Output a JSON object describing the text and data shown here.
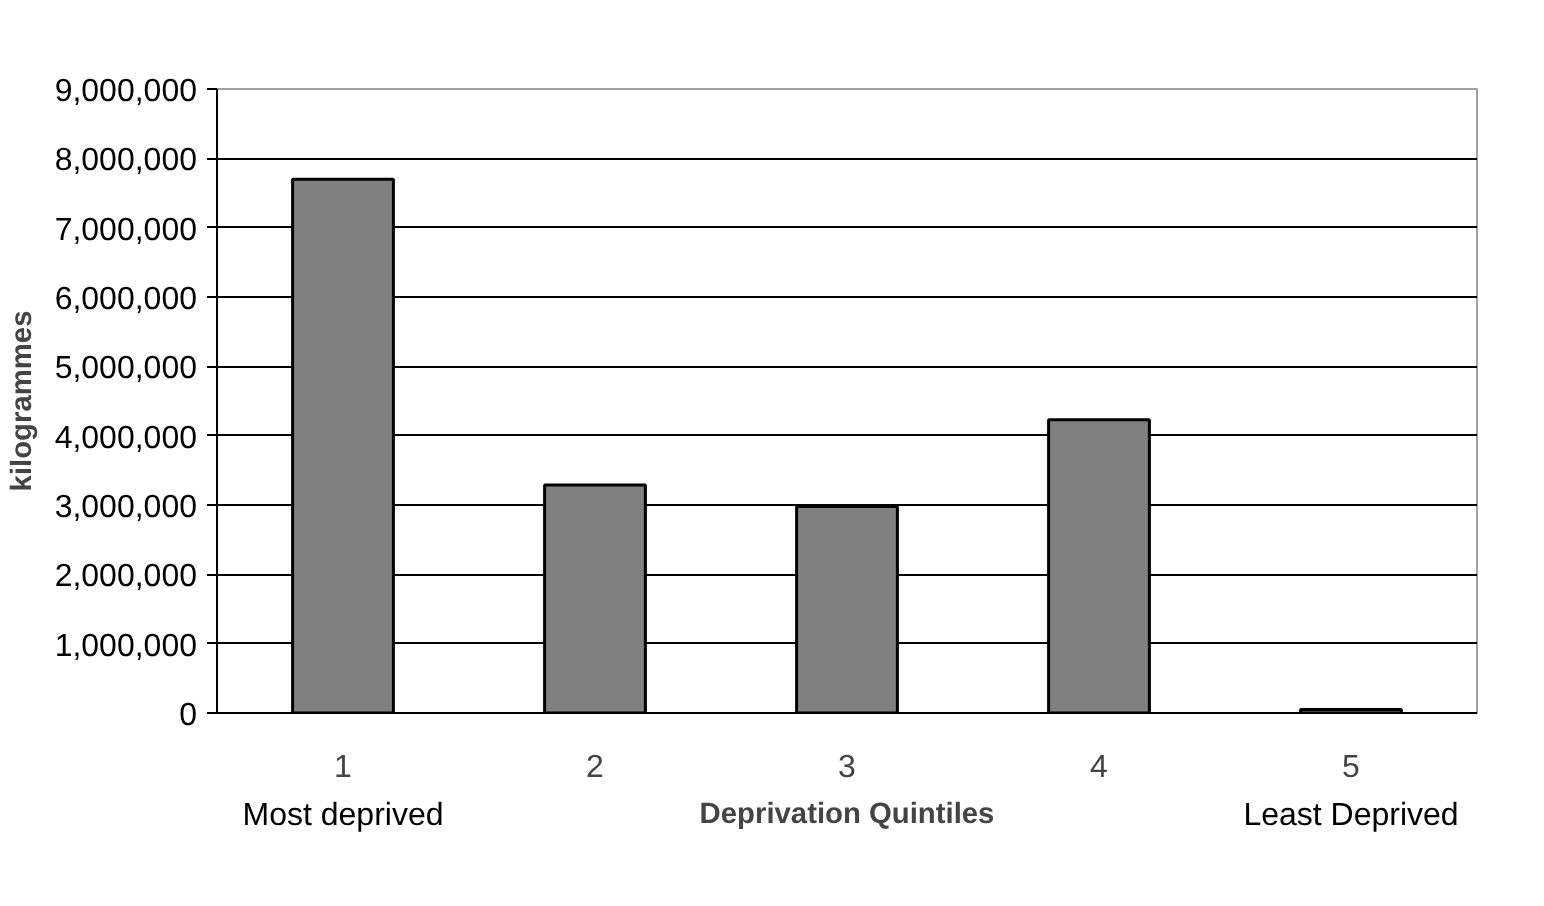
{
  "chart_data": {
    "type": "bar",
    "ylabel": "kilogrammes",
    "xlabel": "Deprivation Quintiles",
    "categories": [
      "1",
      "2",
      "3",
      "4",
      "5"
    ],
    "values": [
      7700000,
      3290000,
      2980000,
      4230000,
      50000
    ],
    "color": "#808080",
    "ylim": [
      0,
      9000000
    ],
    "yticks": [
      {
        "value": 0,
        "label": "0"
      },
      {
        "value": 1000000,
        "label": "1,000,000"
      },
      {
        "value": 2000000,
        "label": "2,000,000"
      },
      {
        "value": 3000000,
        "label": "3,000,000"
      },
      {
        "value": 4000000,
        "label": "4,000,000"
      },
      {
        "value": 5000000,
        "label": "5,000,000"
      },
      {
        "value": 6000000,
        "label": "6,000,000"
      },
      {
        "value": 7000000,
        "label": "7,000,000"
      },
      {
        "value": 8000000,
        "label": "8,000,000"
      },
      {
        "value": 9000000,
        "label": "9,000,000"
      }
    ],
    "grid": "y",
    "annotations": [
      "Most deprived",
      "Least Deprived"
    ]
  }
}
